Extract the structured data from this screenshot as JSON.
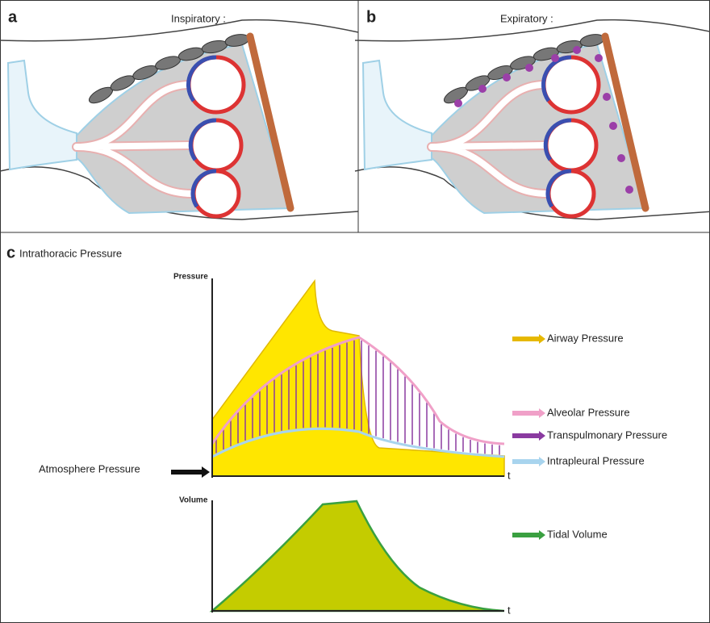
{
  "panels": {
    "a": {
      "label": "a",
      "title": "Inspiratory :"
    },
    "b": {
      "label": "b",
      "title": "Expiratory :"
    },
    "c": {
      "label": "c",
      "title": "Intrathoracic Pressure",
      "pressure_axis": "Pressure",
      "volume_axis": "Volume",
      "time_label": "t",
      "atmosphere": "Atmosphere Pressure",
      "legend": [
        "Airway Pressure",
        "Alveolar Pressure",
        "Transpulmonary Pressure",
        "Intrapleural Pressure",
        "Tidal Volume"
      ]
    }
  }
}
